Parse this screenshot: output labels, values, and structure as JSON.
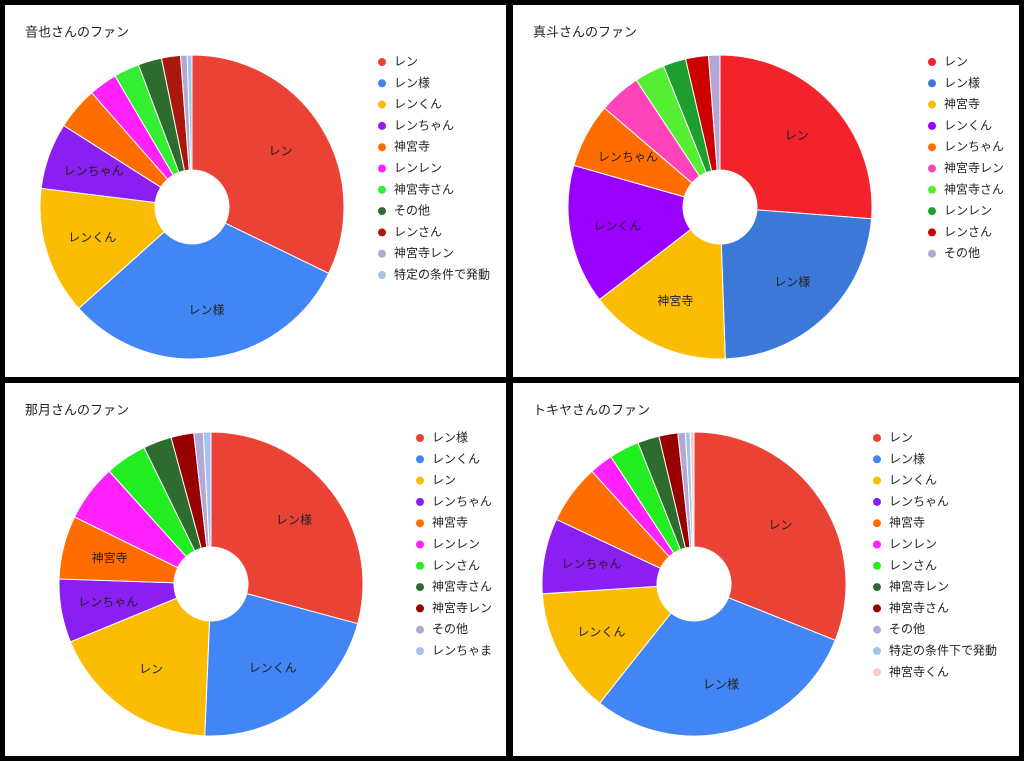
{
  "chart_data": [
    {
      "type": "pie",
      "title": "音也さんのファン",
      "categories": [
        "レン",
        "レン様",
        "レンくん",
        "レンちゃん",
        "神宮寺",
        "レンレン",
        "神宮寺さん",
        "その他",
        "レンさん",
        "神宮寺レン",
        "特定の条件で発動"
      ],
      "values": [
        32,
        31,
        13.5,
        7,
        4.5,
        3,
        2.7,
        2.5,
        2,
        0.7,
        0.5
      ],
      "colors": [
        "#ea4335",
        "#4285f4",
        "#fbbc04",
        "#8b1ef0",
        "#ff6d01",
        "#ff22ff",
        "#33ee33",
        "#2e6b2e",
        "#a8180c",
        "#b4a7d6",
        "#9fc5e8"
      ]
    },
    {
      "type": "pie",
      "title": "真斗さんのファン",
      "categories": [
        "レン",
        "レン様",
        "神宮寺",
        "レンくん",
        "レンちゃん",
        "神宮寺レン",
        "神宮寺さん",
        "レンレン",
        "レンさん",
        "その他"
      ],
      "values": [
        26,
        23,
        15,
        14.7,
        6.8,
        4.4,
        3.2,
        2.4,
        2.4,
        1.2
      ],
      "colors": [
        "#f2232b",
        "#3c78d8",
        "#fbbc04",
        "#9a00ff",
        "#ff6d01",
        "#ff44bb",
        "#55ee33",
        "#1e9e2e",
        "#cc0000",
        "#b4a7d6"
      ]
    },
    {
      "type": "pie",
      "title": "那月さんのファン",
      "categories": [
        "レン様",
        "レンくん",
        "レン",
        "レンちゃん",
        "神宮寺",
        "レンレン",
        "レンさん",
        "神宮寺さん",
        "神宮寺レン",
        "その他",
        "レンちゃま"
      ],
      "values": [
        29,
        21.3,
        18,
        6.7,
        6.7,
        6,
        4.4,
        3,
        2.4,
        1,
        0.8
      ],
      "colors": [
        "#ea4335",
        "#4285f4",
        "#fbbc04",
        "#8b1ef0",
        "#ff6d01",
        "#ff22ff",
        "#22ee22",
        "#2e6b2e",
        "#990000",
        "#b4a7d6",
        "#a4c2f4"
      ]
    },
    {
      "type": "pie",
      "title": "トキヤさんのファン",
      "categories": [
        "レン",
        "レン様",
        "レンくん",
        "レンちゃん",
        "神宮寺",
        "レンレン",
        "レンさん",
        "神宮寺レン",
        "神宮寺さん",
        "その他",
        "特定の条件下で発動",
        "神宮寺くん"
      ],
      "values": [
        31,
        29.6,
        13.3,
        8,
        6.3,
        2.5,
        3.2,
        2.3,
        2,
        0.8,
        0.5,
        0.4
      ],
      "colors": [
        "#ea4335",
        "#4285f4",
        "#fbbc04",
        "#8b1ef0",
        "#ff6d01",
        "#ff22ff",
        "#22ee22",
        "#2e6b2e",
        "#990000",
        "#b4a7d6",
        "#9fc5e8",
        "#f4cccc"
      ]
    }
  ]
}
